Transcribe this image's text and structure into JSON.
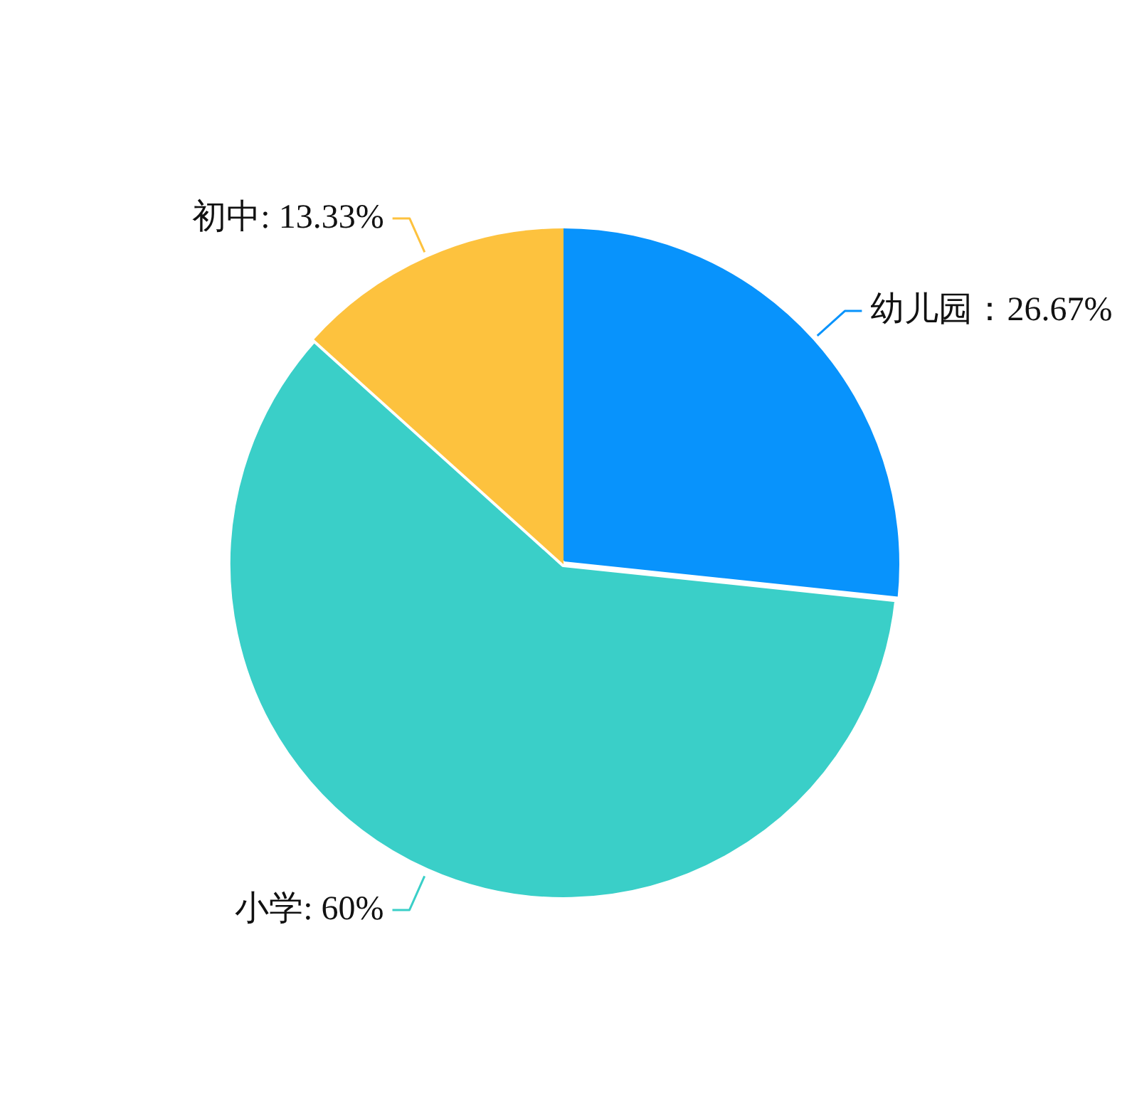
{
  "chart_data": {
    "type": "pie",
    "categories": [
      "幼儿园",
      "小学",
      "初中"
    ],
    "values": [
      26.67,
      60,
      13.33
    ],
    "colors": [
      "#0893fc",
      "#3acfc8",
      "#fdc23e"
    ],
    "value_labels": [
      "：26.67%",
      ": 60%",
      ": 13.33%"
    ],
    "legend": false
  }
}
